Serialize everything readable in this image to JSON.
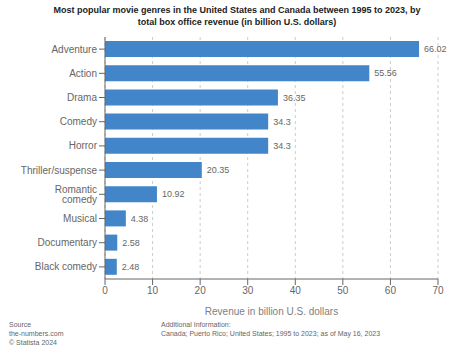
{
  "chart_data": {
    "type": "bar",
    "orientation": "horizontal",
    "title": "Most popular movie genres in the United States and Canada between 1995 to 2023, by\ntotal box office revenue (in billion U.S. dollars)",
    "categories": [
      "Black comedy",
      "Documentary",
      "Musical",
      "Romantic comedy",
      "Thriller/suspense",
      "Horror",
      "Comedy",
      "Drama",
      "Action",
      "Adventure"
    ],
    "values": [
      2.48,
      2.58,
      4.38,
      10.92,
      20.35,
      34.3,
      34.3,
      36.35,
      55.56,
      66.02
    ],
    "color": "#4285c8",
    "xlabel": "Revenue in billion U.S. dollars",
    "xlim": [
      0,
      70
    ],
    "xticks": [
      0,
      10,
      20,
      30,
      40,
      50,
      60,
      70
    ],
    "grid": true,
    "data_labels": true,
    "annotations": [
      "Source\nthe-numbers.com\n© Statista 2024",
      "Additional Information:\nCanada; Puerto Rico; United States; 1995 to 2023; as of May 16, 2023"
    ]
  }
}
